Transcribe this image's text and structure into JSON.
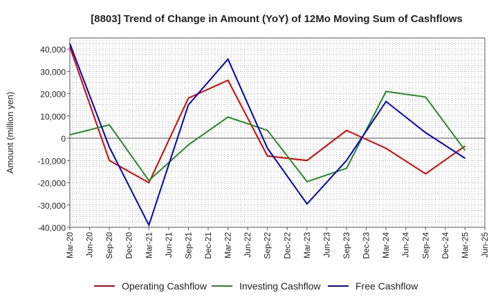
{
  "chart_data": {
    "type": "line",
    "title": "[8803]  Trend of Change in Amount (YoY) of 12Mo Moving Sum of Cashflows",
    "ylabel": "Amount (million yen)",
    "xlabel": "",
    "ylim": [
      -40000,
      45000
    ],
    "yticks": [
      -40000,
      -30000,
      -20000,
      -10000,
      0,
      10000,
      20000,
      30000,
      40000
    ],
    "ytick_labels": [
      "-40,000",
      "-30,000",
      "-20,000",
      "-10,000",
      "0",
      "10,000",
      "20,000",
      "30,000",
      "40,000"
    ],
    "categories": [
      "Mar-20",
      "Jun-20",
      "Sep-20",
      "Dec-20",
      "Mar-21",
      "Jun-21",
      "Sep-21",
      "Dec-21",
      "Mar-22",
      "Jun-22",
      "Sep-22",
      "Dec-22",
      "Mar-23",
      "Jun-23",
      "Sep-23",
      "Dec-23",
      "Mar-24",
      "Jun-24",
      "Sep-24",
      "Dec-24",
      "Mar-25",
      "Jun-25"
    ],
    "grid": true,
    "legend_position": "bottom",
    "series": [
      {
        "name": "Operating Cashflow",
        "color": "#dd0000",
        "values": [
          41000,
          null,
          -10000,
          null,
          -20000,
          null,
          18000,
          null,
          26000,
          null,
          -8000,
          null,
          -10000,
          null,
          3500,
          null,
          -4500,
          null,
          -16000,
          null,
          -3500,
          null
        ]
      },
      {
        "name": "Investing Cashflow",
        "color": "#228b22",
        "values": [
          1500,
          null,
          6000,
          null,
          -19000,
          null,
          -3000,
          null,
          9500,
          null,
          3500,
          null,
          -19500,
          null,
          -13500,
          null,
          21000,
          null,
          18500,
          null,
          -5500,
          null
        ]
      },
      {
        "name": "Free Cashflow",
        "color": "#0000cc",
        "values": [
          42500,
          null,
          -4000,
          null,
          -39000,
          null,
          15000,
          null,
          35500,
          null,
          -4500,
          null,
          -29500,
          null,
          -10000,
          null,
          16500,
          null,
          2500,
          null,
          -9000,
          null
        ]
      }
    ]
  }
}
